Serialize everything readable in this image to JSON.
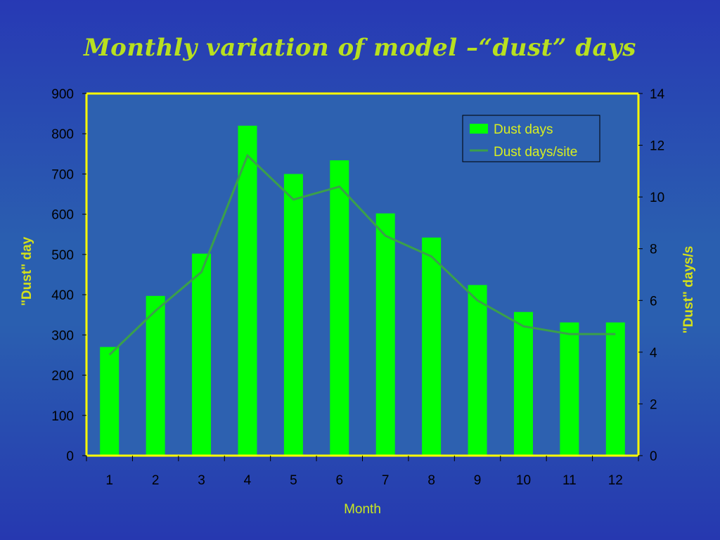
{
  "slide": {
    "title": "Monthly variation of model –“dust” days"
  },
  "colors": {
    "bar": "#00ff00",
    "line": "#3aa04a",
    "axis": "#ffff00",
    "plot_bg": "#2d61b0",
    "title": "#b8e020"
  },
  "chart_data": {
    "type": "bar",
    "categories": [
      "1",
      "2",
      "3",
      "4",
      "5",
      "6",
      "7",
      "8",
      "9",
      "10",
      "11",
      "12"
    ],
    "series": [
      {
        "name": "Dust days",
        "type": "bar",
        "axis": "left",
        "values": [
          270,
          397,
          502,
          820,
          700,
          734,
          602,
          542,
          424,
          357,
          331,
          331
        ]
      },
      {
        "name": "Dust days/site",
        "type": "line",
        "axis": "right",
        "values": [
          3.9,
          5.6,
          7.1,
          11.6,
          9.9,
          10.4,
          8.5,
          7.7,
          6.0,
          5.0,
          4.7,
          4.7
        ]
      }
    ],
    "xlabel": "Month",
    "ylabel_left": "\"Dust\" day",
    "ylabel_right": "\"Dust\" days/s",
    "ylim_left": [
      0,
      900
    ],
    "ylim_right": [
      0,
      14
    ],
    "yticks_left": [
      0,
      100,
      200,
      300,
      400,
      500,
      600,
      700,
      800,
      900
    ],
    "yticks_right": [
      0,
      2,
      4,
      6,
      8,
      10,
      12,
      14
    ],
    "legend": "top-right",
    "grid": false
  }
}
